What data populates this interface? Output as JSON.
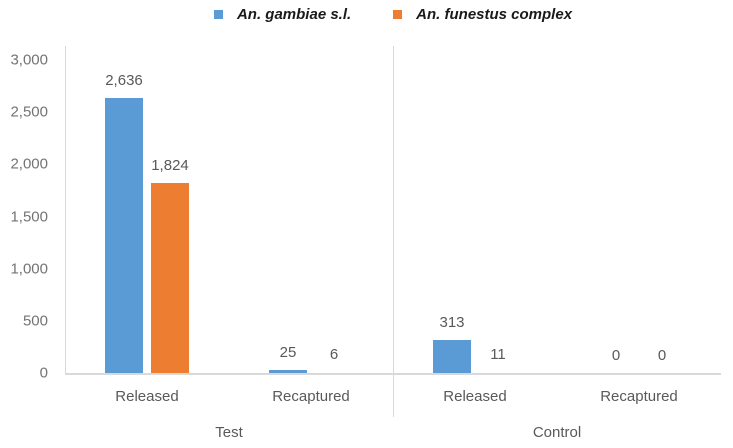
{
  "chart_data": {
    "type": "bar",
    "title": "",
    "legend_position": "top",
    "grid": false,
    "ylim": [
      0,
      3000
    ],
    "yticks": [
      {
        "value": 0,
        "label": "0"
      },
      {
        "value": 500,
        "label": "500"
      },
      {
        "value": 1000,
        "label": "1,000"
      },
      {
        "value": 1500,
        "label": "1,500"
      },
      {
        "value": 2000,
        "label": "2,000"
      },
      {
        "value": 2500,
        "label": "2,500"
      },
      {
        "value": 3000,
        "label": "3,000"
      }
    ],
    "groups": [
      {
        "label": "Test",
        "categories": [
          "Released",
          "Recaptured"
        ]
      },
      {
        "label": "Control",
        "categories": [
          "Released",
          "Recaptured"
        ]
      }
    ],
    "series": [
      {
        "name": "An. gambiae s.l.",
        "color": "#5B9BD5",
        "values": [
          2636,
          25,
          313,
          0
        ],
        "value_labels": [
          "2,636",
          "25",
          "313",
          "0"
        ]
      },
      {
        "name": "An. funestus complex",
        "color": "#ED7D31",
        "values": [
          1824,
          6,
          11,
          0
        ],
        "value_labels": [
          "1,824",
          "6",
          "11",
          "0"
        ]
      }
    ],
    "axis_color": "#D9D9D9"
  }
}
